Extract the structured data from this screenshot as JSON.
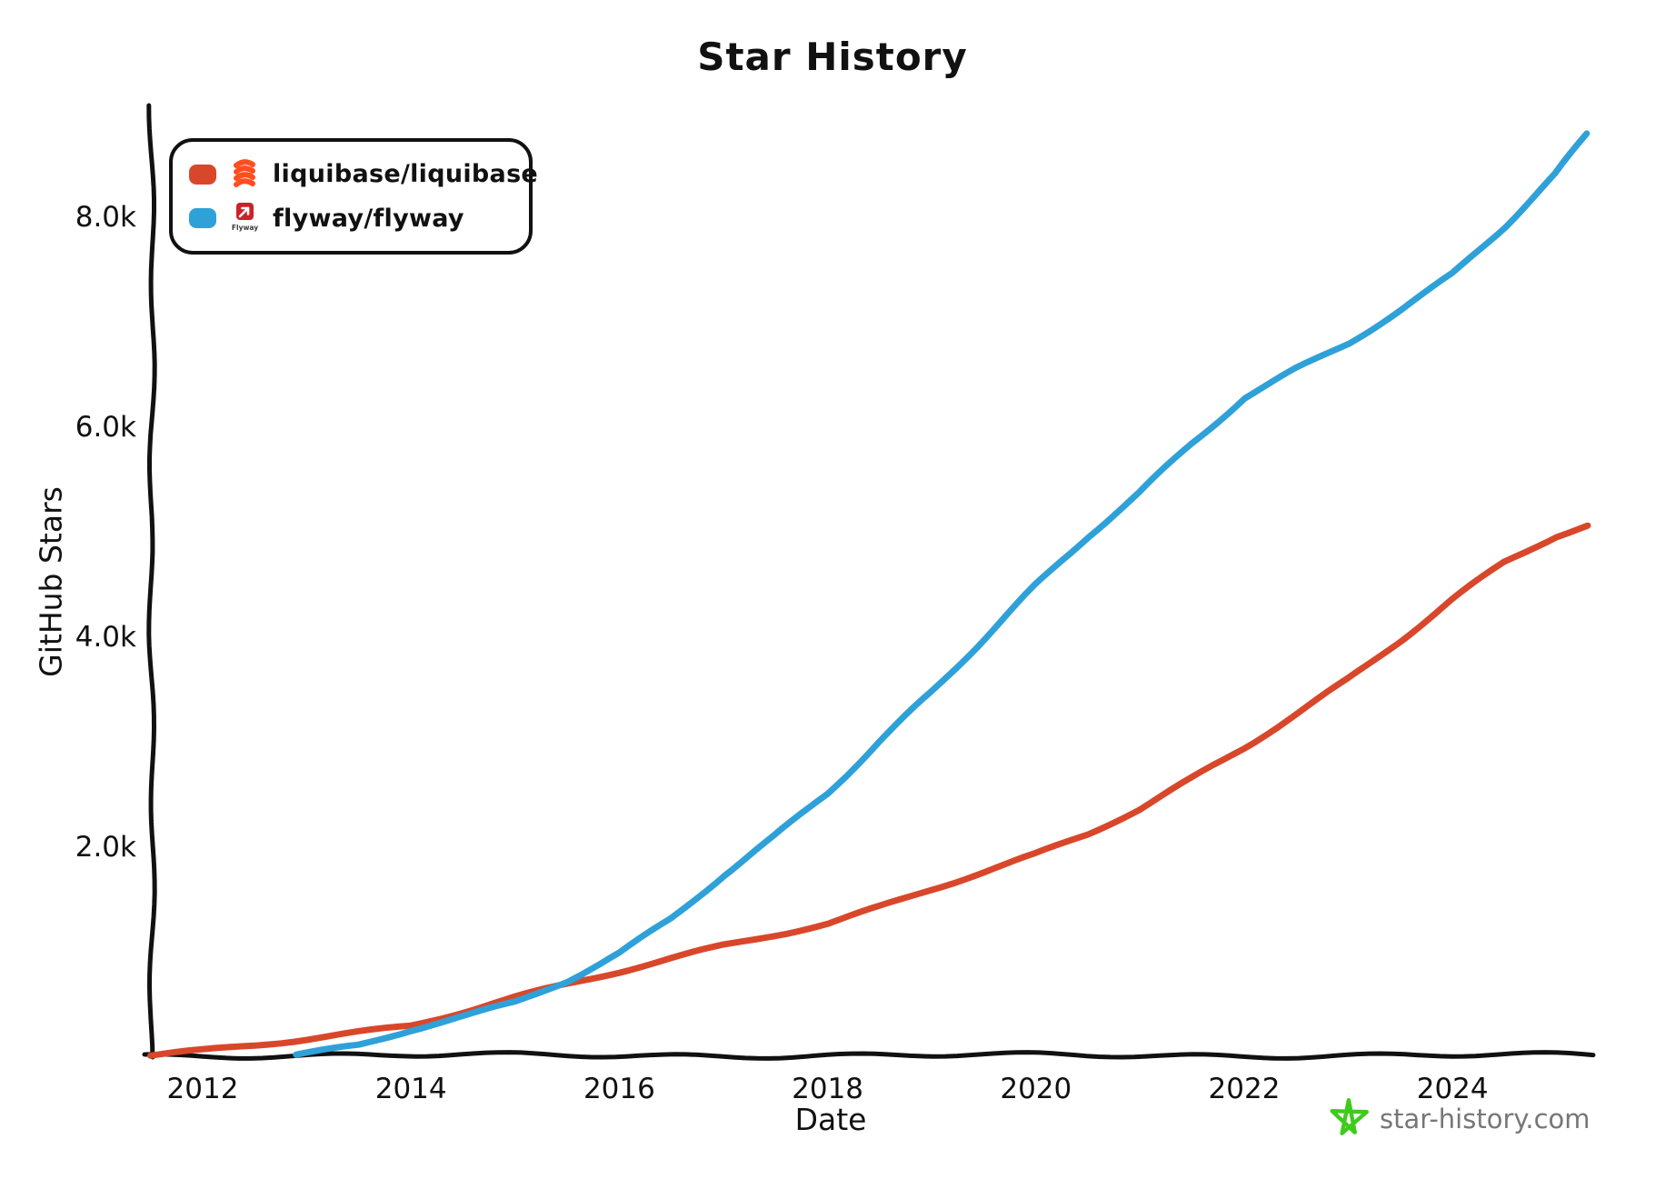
{
  "title": "Star History",
  "watermark": {
    "text": "star-history.com",
    "star_color": "#3ecb1d",
    "text_color": "#777777"
  },
  "legend": [
    {
      "repo": "liquibase/liquibase",
      "color": "#d9472b",
      "icon": "liquibase-logo"
    },
    {
      "repo": "flyway/flyway",
      "color": "#2fa1d9",
      "icon": "flyway-logo"
    }
  ],
  "chart_data": {
    "type": "line",
    "title": "Star History",
    "xlabel": "Date",
    "ylabel": "GitHub Stars",
    "x_ticks": [
      2012,
      2014,
      2016,
      2018,
      2020,
      2022,
      2024
    ],
    "x_tick_labels": [
      "2012",
      "2014",
      "2016",
      "2018",
      "2020",
      "2022",
      "2024"
    ],
    "y_ticks": [
      2000,
      4000,
      6000,
      8000
    ],
    "y_tick_labels": [
      "2.0k",
      "4.0k",
      "6.0k",
      "8.0k"
    ],
    "xlim": [
      2011.5,
      2025.35
    ],
    "ylim": [
      0,
      9050
    ],
    "grid": false,
    "legend_position": "top-left",
    "axis_color": "#111111",
    "series": [
      {
        "name": "liquibase/liquibase",
        "color": "#d9472b",
        "points": [
          [
            2011.5,
            0
          ],
          [
            2012,
            50
          ],
          [
            2012.5,
            110
          ],
          [
            2013,
            170
          ],
          [
            2013.5,
            235
          ],
          [
            2014,
            300
          ],
          [
            2014.5,
            430
          ],
          [
            2015,
            560
          ],
          [
            2015.5,
            680
          ],
          [
            2016,
            800
          ],
          [
            2016.5,
            925
          ],
          [
            2017,
            1050
          ],
          [
            2017.5,
            1160
          ],
          [
            2018,
            1270
          ],
          [
            2018.5,
            1430
          ],
          [
            2019,
            1600
          ],
          [
            2019.5,
            1760
          ],
          [
            2020,
            1920
          ],
          [
            2020.5,
            2110
          ],
          [
            2021,
            2350
          ],
          [
            2021.5,
            2640
          ],
          [
            2022,
            2940
          ],
          [
            2022.5,
            3270
          ],
          [
            2023,
            3600
          ],
          [
            2023.5,
            3970
          ],
          [
            2024,
            4350
          ],
          [
            2024.5,
            4700
          ],
          [
            2025,
            4950
          ],
          [
            2025.3,
            5050
          ]
        ]
      },
      {
        "name": "flyway/flyway",
        "color": "#2fa1d9",
        "points": [
          [
            2012.9,
            0
          ],
          [
            2013.5,
            100
          ],
          [
            2014,
            250
          ],
          [
            2014.5,
            380
          ],
          [
            2015,
            520
          ],
          [
            2015.5,
            730
          ],
          [
            2016,
            990
          ],
          [
            2016.5,
            1310
          ],
          [
            2017,
            1720
          ],
          [
            2017.5,
            2090
          ],
          [
            2018,
            2500
          ],
          [
            2018.5,
            3000
          ],
          [
            2019,
            3480
          ],
          [
            2019.5,
            3990
          ],
          [
            2020,
            4490
          ],
          [
            2020.5,
            4950
          ],
          [
            2021,
            5360
          ],
          [
            2021.5,
            5830
          ],
          [
            2022,
            6270
          ],
          [
            2022.5,
            6550
          ],
          [
            2023,
            6800
          ],
          [
            2023.5,
            7120
          ],
          [
            2024,
            7450
          ],
          [
            2024.5,
            7900
          ],
          [
            2025,
            8400
          ],
          [
            2025.3,
            8780
          ]
        ]
      }
    ]
  }
}
